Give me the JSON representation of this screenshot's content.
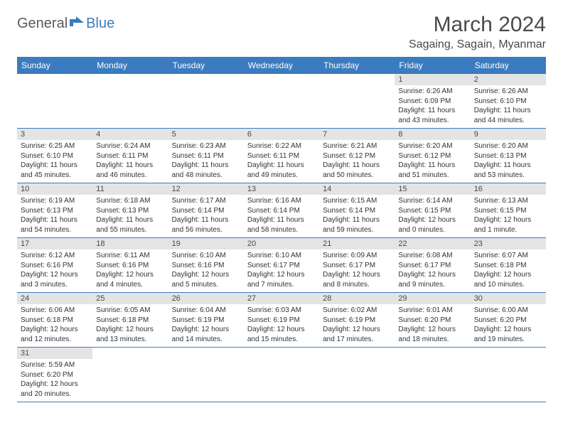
{
  "logo": {
    "part1": "General",
    "part2": "Blue"
  },
  "title": "March 2024",
  "location": "Sagaing, Sagain, Myanmar",
  "colors": {
    "header_bg": "#3b7bbf",
    "header_text": "#ffffff",
    "daynum_bg": "#e4e4e4",
    "border": "#3b7bbf",
    "text": "#4a4a4a",
    "logo_gray": "#5a5a5a",
    "logo_blue": "#3b7bbf"
  },
  "weekdays": [
    "Sunday",
    "Monday",
    "Tuesday",
    "Wednesday",
    "Thursday",
    "Friday",
    "Saturday"
  ],
  "weeks": [
    [
      {
        "n": null
      },
      {
        "n": null
      },
      {
        "n": null
      },
      {
        "n": null
      },
      {
        "n": null
      },
      {
        "n": "1",
        "sr": "6:26 AM",
        "ss": "6:09 PM",
        "dl": "11 hours and 43 minutes."
      },
      {
        "n": "2",
        "sr": "6:26 AM",
        "ss": "6:10 PM",
        "dl": "11 hours and 44 minutes."
      }
    ],
    [
      {
        "n": "3",
        "sr": "6:25 AM",
        "ss": "6:10 PM",
        "dl": "11 hours and 45 minutes."
      },
      {
        "n": "4",
        "sr": "6:24 AM",
        "ss": "6:11 PM",
        "dl": "11 hours and 46 minutes."
      },
      {
        "n": "5",
        "sr": "6:23 AM",
        "ss": "6:11 PM",
        "dl": "11 hours and 48 minutes."
      },
      {
        "n": "6",
        "sr": "6:22 AM",
        "ss": "6:11 PM",
        "dl": "11 hours and 49 minutes."
      },
      {
        "n": "7",
        "sr": "6:21 AM",
        "ss": "6:12 PM",
        "dl": "11 hours and 50 minutes."
      },
      {
        "n": "8",
        "sr": "6:20 AM",
        "ss": "6:12 PM",
        "dl": "11 hours and 51 minutes."
      },
      {
        "n": "9",
        "sr": "6:20 AM",
        "ss": "6:13 PM",
        "dl": "11 hours and 53 minutes."
      }
    ],
    [
      {
        "n": "10",
        "sr": "6:19 AM",
        "ss": "6:13 PM",
        "dl": "11 hours and 54 minutes."
      },
      {
        "n": "11",
        "sr": "6:18 AM",
        "ss": "6:13 PM",
        "dl": "11 hours and 55 minutes."
      },
      {
        "n": "12",
        "sr": "6:17 AM",
        "ss": "6:14 PM",
        "dl": "11 hours and 56 minutes."
      },
      {
        "n": "13",
        "sr": "6:16 AM",
        "ss": "6:14 PM",
        "dl": "11 hours and 58 minutes."
      },
      {
        "n": "14",
        "sr": "6:15 AM",
        "ss": "6:14 PM",
        "dl": "11 hours and 59 minutes."
      },
      {
        "n": "15",
        "sr": "6:14 AM",
        "ss": "6:15 PM",
        "dl": "12 hours and 0 minutes."
      },
      {
        "n": "16",
        "sr": "6:13 AM",
        "ss": "6:15 PM",
        "dl": "12 hours and 1 minute."
      }
    ],
    [
      {
        "n": "17",
        "sr": "6:12 AM",
        "ss": "6:16 PM",
        "dl": "12 hours and 3 minutes."
      },
      {
        "n": "18",
        "sr": "6:11 AM",
        "ss": "6:16 PM",
        "dl": "12 hours and 4 minutes."
      },
      {
        "n": "19",
        "sr": "6:10 AM",
        "ss": "6:16 PM",
        "dl": "12 hours and 5 minutes."
      },
      {
        "n": "20",
        "sr": "6:10 AM",
        "ss": "6:17 PM",
        "dl": "12 hours and 7 minutes."
      },
      {
        "n": "21",
        "sr": "6:09 AM",
        "ss": "6:17 PM",
        "dl": "12 hours and 8 minutes."
      },
      {
        "n": "22",
        "sr": "6:08 AM",
        "ss": "6:17 PM",
        "dl": "12 hours and 9 minutes."
      },
      {
        "n": "23",
        "sr": "6:07 AM",
        "ss": "6:18 PM",
        "dl": "12 hours and 10 minutes."
      }
    ],
    [
      {
        "n": "24",
        "sr": "6:06 AM",
        "ss": "6:18 PM",
        "dl": "12 hours and 12 minutes."
      },
      {
        "n": "25",
        "sr": "6:05 AM",
        "ss": "6:18 PM",
        "dl": "12 hours and 13 minutes."
      },
      {
        "n": "26",
        "sr": "6:04 AM",
        "ss": "6:19 PM",
        "dl": "12 hours and 14 minutes."
      },
      {
        "n": "27",
        "sr": "6:03 AM",
        "ss": "6:19 PM",
        "dl": "12 hours and 15 minutes."
      },
      {
        "n": "28",
        "sr": "6:02 AM",
        "ss": "6:19 PM",
        "dl": "12 hours and 17 minutes."
      },
      {
        "n": "29",
        "sr": "6:01 AM",
        "ss": "6:20 PM",
        "dl": "12 hours and 18 minutes."
      },
      {
        "n": "30",
        "sr": "6:00 AM",
        "ss": "6:20 PM",
        "dl": "12 hours and 19 minutes."
      }
    ],
    [
      {
        "n": "31",
        "sr": "5:59 AM",
        "ss": "6:20 PM",
        "dl": "12 hours and 20 minutes."
      },
      {
        "n": null
      },
      {
        "n": null
      },
      {
        "n": null
      },
      {
        "n": null
      },
      {
        "n": null
      },
      {
        "n": null
      }
    ]
  ],
  "labels": {
    "sunrise": "Sunrise:",
    "sunset": "Sunset:",
    "daylight": "Daylight:"
  }
}
